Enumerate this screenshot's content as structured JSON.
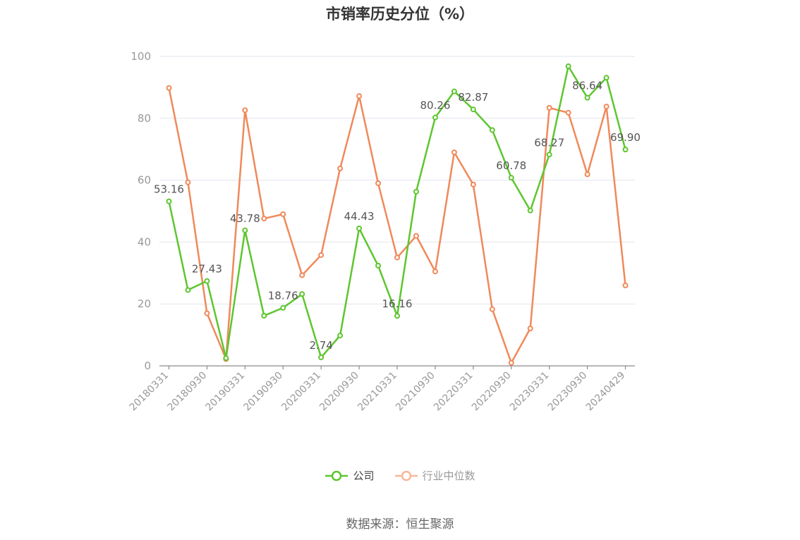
{
  "title": "市销率历史分位（%）",
  "source": "数据来源：恒生聚源",
  "colors": {
    "company": "#5dc62f",
    "industry": "#f0895a",
    "industry_legend": "#f7b79a"
  },
  "legend": {
    "company": "公司",
    "industry": "行业中位数"
  },
  "chart_data": {
    "type": "line",
    "title": "市销率历史分位（%）",
    "xlabel": "",
    "ylabel": "",
    "ylim": [
      0,
      100
    ],
    "yticks": [
      0,
      20,
      40,
      60,
      80,
      100
    ],
    "grid": true,
    "legend_position": "bottom",
    "x": [
      "20180331",
      "20180630",
      "20180930",
      "20181231",
      "20190331",
      "20190630",
      "20190930",
      "20191231",
      "20200331",
      "20200630",
      "20200930",
      "20201231",
      "20210331",
      "20210630",
      "20210930",
      "20211231",
      "20220331",
      "20220630",
      "20220930",
      "20221231",
      "20230331",
      "20230630",
      "20230930",
      "20231231",
      "20240429"
    ],
    "x_tick_labels": [
      "20180331",
      "20180930",
      "20190331",
      "20190930",
      "20200331",
      "20200930",
      "20210331",
      "20210930",
      "20220331",
      "20220930",
      "20230331",
      "20230930",
      "20240429"
    ],
    "series": [
      {
        "name": "公司",
        "values": [
          53.16,
          24.5,
          27.43,
          2.5,
          43.78,
          16.2,
          18.76,
          23.2,
          2.74,
          9.8,
          44.43,
          32.4,
          16.16,
          56.3,
          80.26,
          88.7,
          82.87,
          76.2,
          60.78,
          50.2,
          68.27,
          96.8,
          86.64,
          93.1,
          69.9
        ],
        "labels": [
          "53.16",
          "",
          "27.43",
          "",
          "43.78",
          "",
          "18.76",
          "",
          "2.74",
          "",
          "44.43",
          "",
          "16.16",
          "",
          "80.26",
          "",
          "82.87",
          "",
          "60.78",
          "",
          "68.27",
          "",
          "86.64",
          "",
          "69.90"
        ]
      },
      {
        "name": "行业中位数",
        "values": [
          89.8,
          59.3,
          17.0,
          2.2,
          82.6,
          47.6,
          49.0,
          29.3,
          35.8,
          63.8,
          87.2,
          59.0,
          35.0,
          42.0,
          30.5,
          69.0,
          58.6,
          18.3,
          1.0,
          12.1,
          83.4,
          81.8,
          61.9,
          83.8,
          26.0
        ]
      }
    ]
  }
}
